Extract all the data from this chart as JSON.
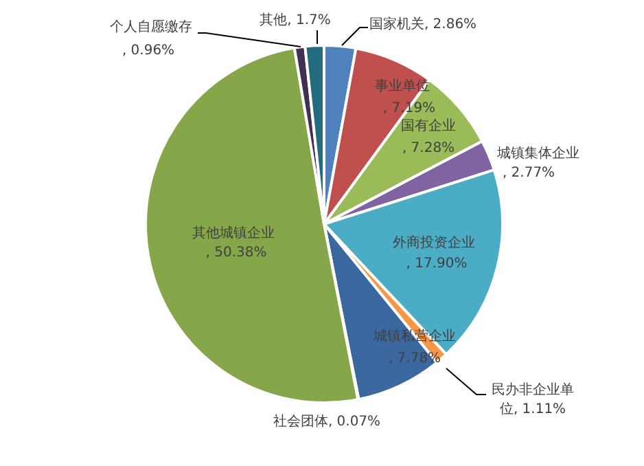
{
  "chart_data": {
    "type": "pie",
    "categories": [
      "国家机关",
      "事业单位",
      "国有企业",
      "城镇集体企业",
      "外商投资企业",
      "民办非企业单位",
      "城镇私营企业",
      "社会团体",
      "其他城镇企业",
      "个人自愿缴存",
      "其他"
    ],
    "values": [
      2.86,
      7.19,
      7.28,
      2.77,
      17.9,
      1.11,
      7.78,
      0.07,
      50.38,
      0.96,
      1.7
    ],
    "value_labels": [
      ", 2.86%",
      ", 7.19%",
      ", 7.28%",
      ", 2.77%",
      ", 17.90%",
      ", 1.11%",
      ", 7.78%",
      ", 0.07%",
      ", 50.38%",
      ", 0.96%",
      ", 1.7%"
    ],
    "colors": [
      "#4f81bd",
      "#c0504d",
      "#9bbb59",
      "#8064a2",
      "#4bacc6",
      "#f79646",
      "#3c68a0",
      "#7d9ec8",
      "#86a64a",
      "#403152",
      "#236b7e"
    ],
    "legend": false
  }
}
